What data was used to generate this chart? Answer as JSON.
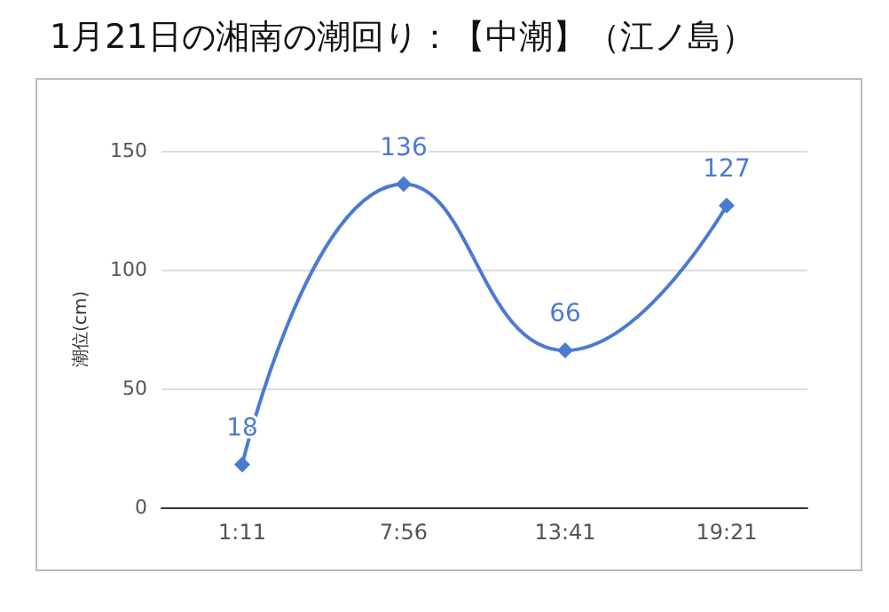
{
  "chart_data": {
    "type": "line",
    "title": "1月21日の湘南の潮回り：【中潮】（江ノ島）",
    "ylabel": "潮位(cm)",
    "categories": [
      "1:11",
      "7:56",
      "13:41",
      "19:21"
    ],
    "series": [
      {
        "color": "#4a7bd3",
        "values": [
          18,
          136,
          66,
          127
        ]
      }
    ],
    "ylim": [
      0,
      150
    ],
    "yticks": [
      0,
      50,
      100,
      150
    ],
    "grid": "y",
    "marker": "diamond",
    "line_style": "solid",
    "data_labels": true
  }
}
